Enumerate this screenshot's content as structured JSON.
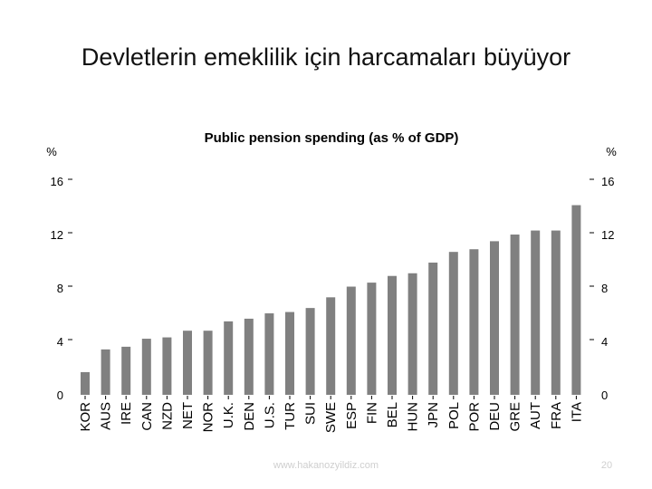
{
  "slide": {
    "title": "Devletlerin emeklilik için harcamaları büyüyor",
    "footer_url": "www.hakanozyildiz.com",
    "page_number": "20"
  },
  "chart_data": {
    "type": "bar",
    "title": "Public pension spending (as % of GDP)",
    "left_unit": "%",
    "right_unit": "%",
    "categories": [
      "KOR",
      "AUS",
      "IRE",
      "CAN",
      "NZD",
      "NET",
      "NOR",
      "U.K.",
      "DEN",
      "U.S.",
      "TUR",
      "SUI",
      "SWE",
      "ESP",
      "FIN",
      "BEL",
      "HUN",
      "JPN",
      "POL",
      "POR",
      "DEU",
      "GRE",
      "AUT",
      "FRA",
      "ITA"
    ],
    "values": [
      1.7,
      3.4,
      3.6,
      4.2,
      4.3,
      4.8,
      4.8,
      5.5,
      5.7,
      6.1,
      6.2,
      6.5,
      7.3,
      8.1,
      8.4,
      8.9,
      9.1,
      9.9,
      10.7,
      10.9,
      11.5,
      12.0,
      12.3,
      12.3,
      14.2
    ],
    "ylim": [
      0,
      16
    ],
    "yticks": [
      "0",
      "4",
      "8",
      "12",
      "16"
    ],
    "bar_color": "#808080",
    "grid": false
  }
}
